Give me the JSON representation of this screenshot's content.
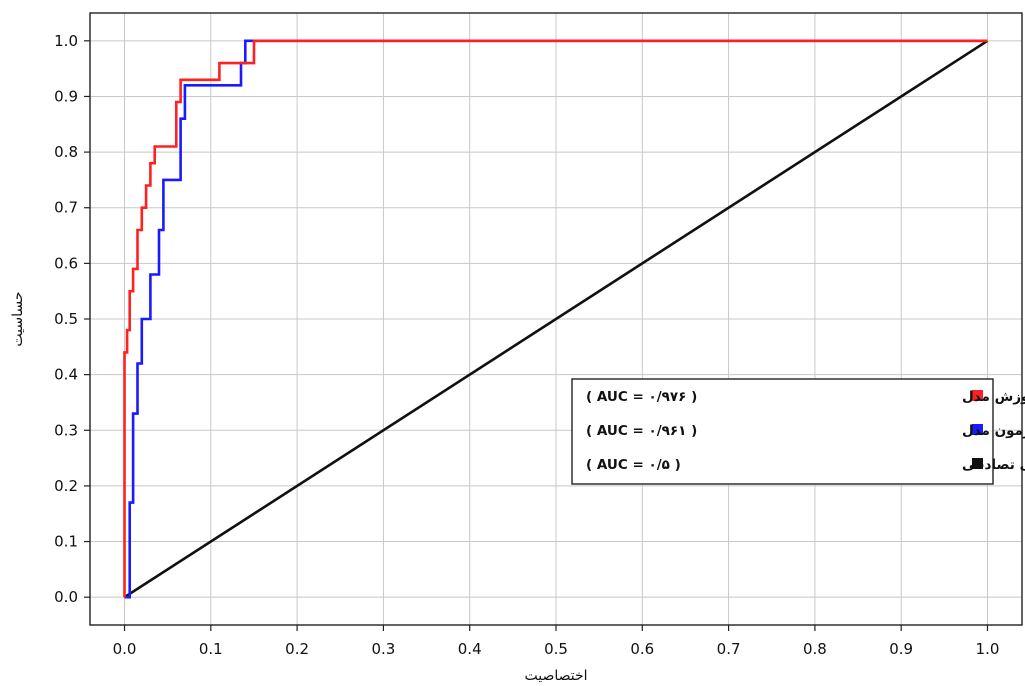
{
  "chart_data": {
    "type": "line",
    "xlabel": "اختصاصیت",
    "ylabel": "حساسیت",
    "xlim": [
      -0.04,
      1.04
    ],
    "ylim": [
      -0.05,
      1.05
    ],
    "x_ticks": [
      "0.0",
      "0.1",
      "0.2",
      "0.3",
      "0.4",
      "0.5",
      "0.6",
      "0.7",
      "0.8",
      "0.9",
      "1.0"
    ],
    "y_ticks": [
      "0.0",
      "0.1",
      "0.2",
      "0.3",
      "0.4",
      "0.5",
      "0.6",
      "0.7",
      "0.8",
      "0.9",
      "1.0"
    ],
    "grid": true,
    "legend_position": "center-right",
    "series": [
      {
        "name": "داده های آموزش مدل",
        "auc_label": "( AUC = ۰/۹۷۶ )",
        "color": "#ff2020",
        "x": [
          0.0,
          0.0,
          0.003,
          0.003,
          0.006,
          0.006,
          0.01,
          0.01,
          0.015,
          0.015,
          0.02,
          0.02,
          0.025,
          0.025,
          0.03,
          0.03,
          0.035,
          0.035,
          0.04,
          0.04,
          0.06,
          0.06,
          0.065,
          0.065,
          0.11,
          0.11,
          0.15,
          0.15,
          1.0
        ],
        "y": [
          0.0,
          0.44,
          0.44,
          0.48,
          0.48,
          0.55,
          0.55,
          0.59,
          0.59,
          0.66,
          0.66,
          0.7,
          0.7,
          0.74,
          0.74,
          0.78,
          0.78,
          0.81,
          0.81,
          0.81,
          0.81,
          0.89,
          0.89,
          0.93,
          0.93,
          0.96,
          0.96,
          1.0,
          1.0
        ]
      },
      {
        "name": "داده های آزمون مدل",
        "auc_label": "( AUC = ۰/۹۶۱ )",
        "color": "#1a1aff",
        "x": [
          0.0,
          0.006,
          0.006,
          0.01,
          0.01,
          0.015,
          0.015,
          0.02,
          0.02,
          0.03,
          0.03,
          0.04,
          0.04,
          0.045,
          0.045,
          0.055,
          0.055,
          0.065,
          0.065,
          0.07,
          0.07,
          0.135,
          0.135,
          0.14,
          0.14,
          1.0
        ],
        "y": [
          0.0,
          0.0,
          0.17,
          0.17,
          0.33,
          0.33,
          0.42,
          0.42,
          0.5,
          0.5,
          0.58,
          0.58,
          0.66,
          0.66,
          0.75,
          0.75,
          0.75,
          0.75,
          0.86,
          0.86,
          0.92,
          0.92,
          0.96,
          0.96,
          1.0,
          1.0
        ]
      },
      {
        "name": "پیش بینی تصادفی",
        "auc_label": "( AUC = ۰/۵ )",
        "color": "#111111",
        "x": [
          0.0,
          1.0
        ],
        "y": [
          0.0,
          1.0
        ]
      }
    ]
  }
}
